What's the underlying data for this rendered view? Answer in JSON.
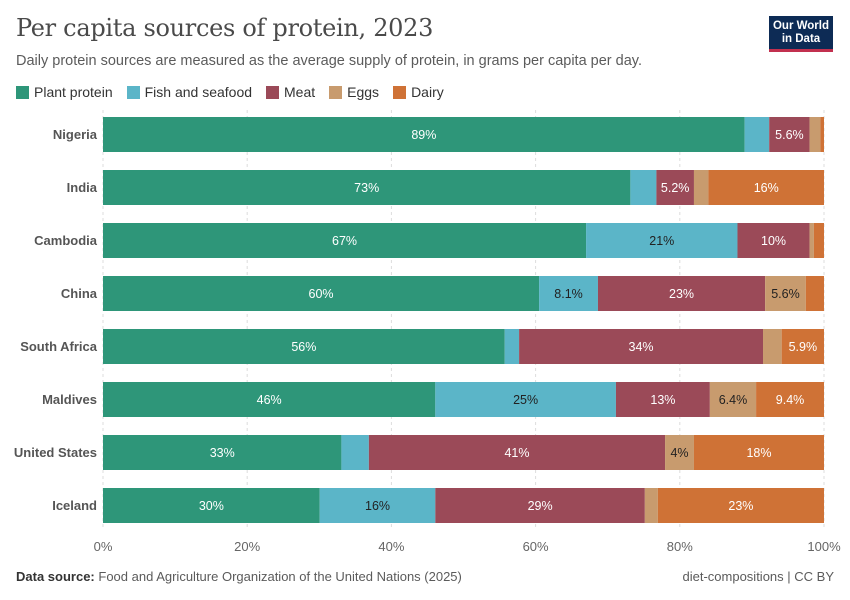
{
  "title": "Per capita sources of protein, 2023",
  "subtitle": "Daily protein sources are measured as the average supply of protein, in grams per capita per day.",
  "logo": {
    "line1": "Our World",
    "line2": "in Data"
  },
  "footer": {
    "source_label": "Data source:",
    "source_text": "Food and Agriculture Organization of the United Nations (2025)",
    "right": "diet-compositions | CC BY"
  },
  "colors": {
    "Plant protein": "#2e9679",
    "Fish and seafood": "#5bb5c8",
    "Meat": "#9b4a58",
    "Eggs": "#c89b6e",
    "Dairy": "#cf7236"
  },
  "chart_data": {
    "type": "bar",
    "orientation": "horizontal",
    "stacked": true,
    "categories": [
      "Nigeria",
      "India",
      "Cambodia",
      "China",
      "South Africa",
      "Maldives",
      "United States",
      "Iceland"
    ],
    "series": [
      {
        "name": "Plant protein",
        "values": [
          89,
          73,
          67,
          60,
          56,
          46,
          33,
          30
        ],
        "labels": [
          "89%",
          "73%",
          "67%",
          "60%",
          "56%",
          "46%",
          "33%",
          "30%"
        ]
      },
      {
        "name": "Fish and seafood",
        "values": [
          3.4,
          3.6,
          21,
          8.1,
          2,
          25,
          3.8,
          16
        ],
        "labels": [
          "",
          "",
          "21%",
          "8.1%",
          "",
          "25%",
          "",
          "16%"
        ]
      },
      {
        "name": "Meat",
        "values": [
          5.6,
          5.2,
          10,
          23,
          34,
          13,
          41,
          29
        ],
        "labels": [
          "5.6%",
          "5.2%",
          "10%",
          "23%",
          "34%",
          "13%",
          "41%",
          "29%"
        ]
      },
      {
        "name": "Eggs",
        "values": [
          1.5,
          2,
          0.6,
          5.6,
          2.6,
          6.4,
          4,
          1.8
        ],
        "labels": [
          "",
          "",
          "",
          "5.6%",
          "",
          "6.4%",
          "4%",
          ""
        ]
      },
      {
        "name": "Dairy",
        "values": [
          0.5,
          16,
          1.4,
          2.5,
          5.9,
          9.4,
          18,
          23
        ],
        "labels": [
          "",
          "16%",
          "",
          "",
          "5.9%",
          "9.4%",
          "18%",
          "23%"
        ]
      }
    ],
    "xlim": [
      0,
      100
    ],
    "x_ticks": [
      "0%",
      "20%",
      "40%",
      "60%",
      "80%",
      "100%"
    ],
    "legend_position": "top-left",
    "grid": true
  }
}
